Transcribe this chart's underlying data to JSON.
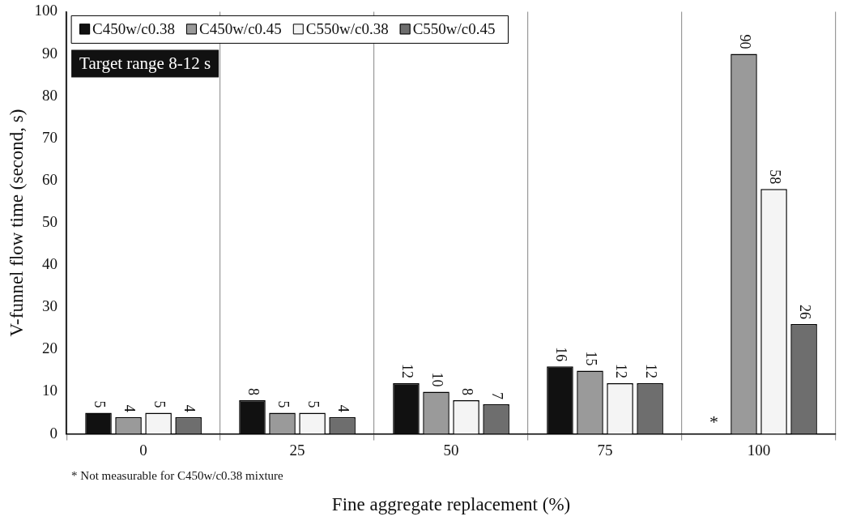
{
  "chart_data": {
    "type": "bar",
    "xlabel": "Fine aggregate replacement (%)",
    "ylabel": "V-funnel flow time (second, s)",
    "categories": [
      "0",
      "25",
      "50",
      "75",
      "100"
    ],
    "series": [
      {
        "name": "C450w/c0.38",
        "color": "#111111",
        "values": [
          5,
          8,
          12,
          16,
          null
        ]
      },
      {
        "name": "C450w/c0.45",
        "color": "#9a9a9a",
        "values": [
          4,
          5,
          10,
          15,
          90
        ]
      },
      {
        "name": "C550w/c0.38",
        "color": "#f4f4f4",
        "values": [
          5,
          5,
          8,
          12,
          58
        ]
      },
      {
        "name": "C550w/c0.45",
        "color": "#6e6e6e",
        "values": [
          4,
          4,
          7,
          12,
          26
        ]
      }
    ],
    "ylim": [
      0,
      100
    ],
    "yticks": [
      0,
      10,
      20,
      30,
      40,
      50,
      60,
      70,
      80,
      90,
      100
    ],
    "grid": "x",
    "legend": "top left",
    "data_labels": true,
    "annotations": [
      "Target range 8-12 s",
      {
        "text": "*",
        "x": "100",
        "y": 0
      },
      "* Not measurable for C450w/c0.38 mixture"
    ]
  }
}
